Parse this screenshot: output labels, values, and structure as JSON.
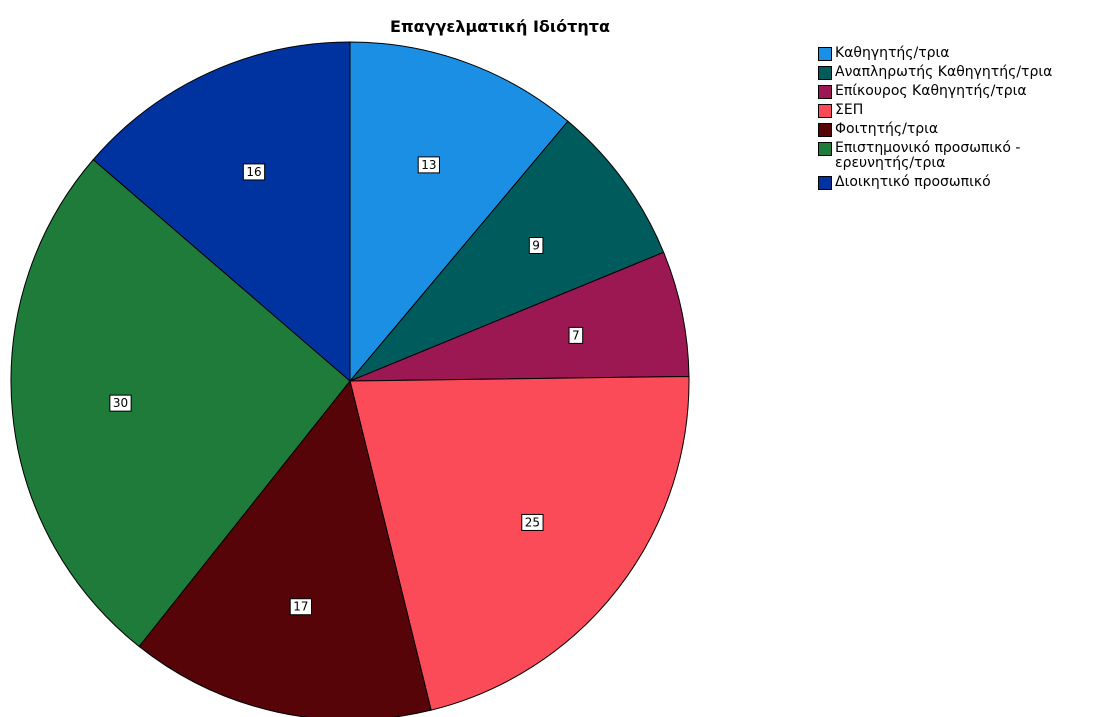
{
  "chart_data": {
    "type": "pie",
    "title": "Επαγγελματική Ιδιότητα",
    "categories": [
      "Καθηγητής/τρια",
      "Αναπληρωτής Καθηγητής/τρια",
      "Επίκουρος Καθηγητής/τρια",
      "ΣΕΠ",
      "Φοιτητής/τρια",
      "Επιστημονικό προσωπικό - ερευνητής/τρια",
      "Διοικητικό προσωπικό"
    ],
    "values": [
      13,
      9,
      7,
      25,
      17,
      30,
      16
    ],
    "colors": [
      "#1a8fe3",
      "#005c5c",
      "#9b1852",
      "#fb4b58",
      "#560407",
      "#1e7b3a",
      "#0033a0"
    ],
    "legend": "top-right"
  }
}
